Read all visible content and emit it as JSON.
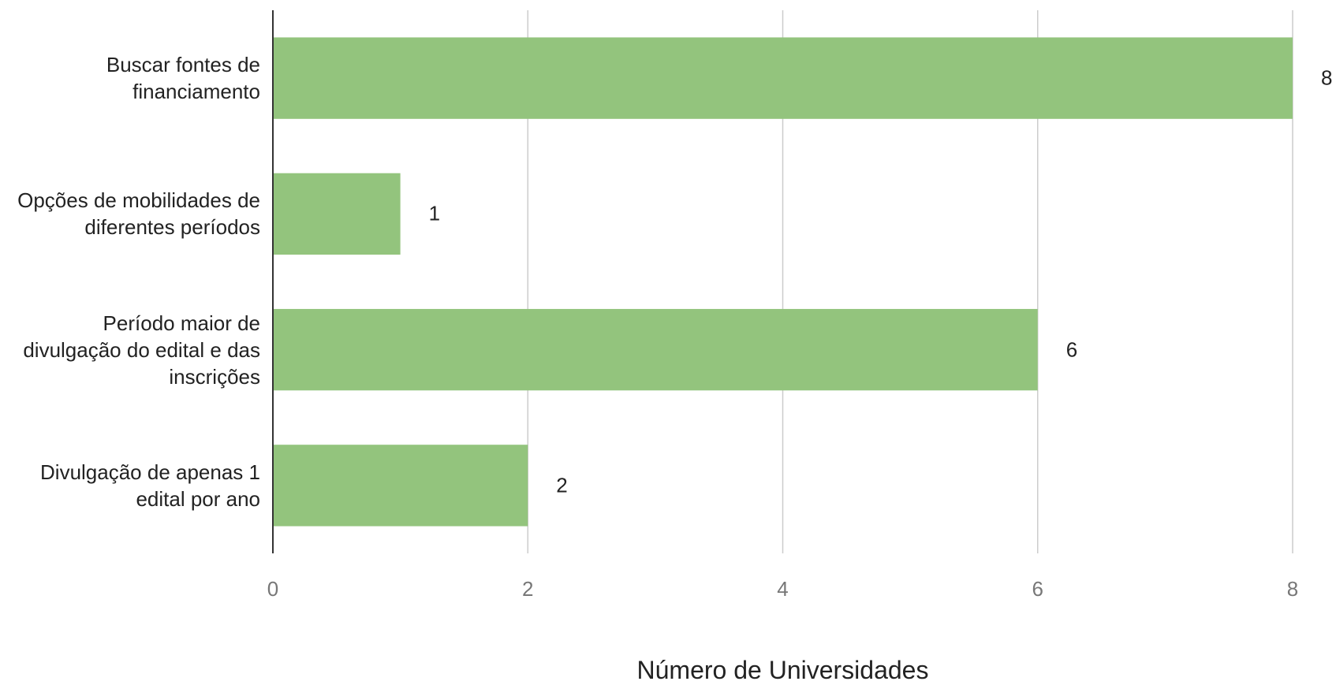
{
  "chart_data": {
    "type": "bar",
    "orientation": "horizontal",
    "categories": [
      "Buscar fontes de financiamento",
      "Opções de mobilidades de diferentes períodos",
      "Período maior de divulgação do edital e das inscrições",
      "Divulgação de apenas 1 edital por ano"
    ],
    "values": [
      8,
      1,
      6,
      2
    ],
    "color": "#93c47d",
    "xlabel": "Número de Universidades",
    "xlim": [
      0,
      8
    ],
    "xticks": [
      0,
      2,
      4,
      6,
      8
    ],
    "grid": true
  }
}
